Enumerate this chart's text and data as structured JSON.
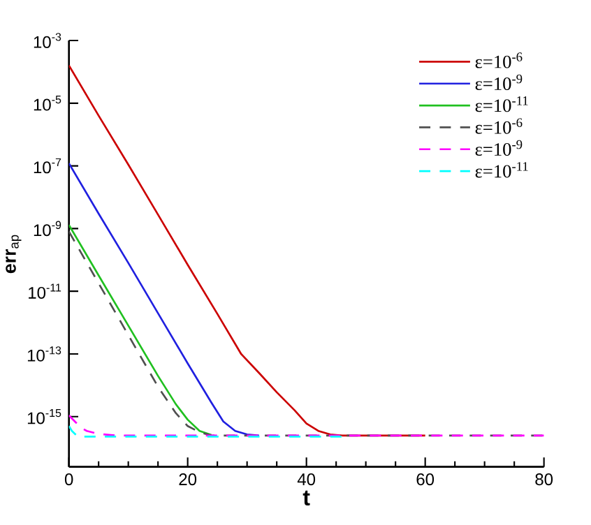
{
  "chart_data": {
    "type": "line",
    "xlabel": "t",
    "ylabel": "**err**$_{ap}$",
    "log": "y",
    "legend": "top right",
    "marker": "none",
    "grid": false,
    "xlim": [
      0,
      80
    ],
    "ylim": [
      2.5e-17,
      0.001
    ],
    "xticks": [
      0,
      20,
      40,
      60,
      80
    ],
    "yticks": [
      {
        "value": 0.001,
        "label": "10$^{-3}$"
      },
      {
        "value": 1e-05,
        "label": "10$^{-5}$"
      },
      {
        "value": 1e-07,
        "label": "10$^{-7}$"
      },
      {
        "value": 1e-09,
        "label": "10$^{-9}$"
      },
      {
        "value": 1e-11,
        "label": "10$^{-11}$"
      },
      {
        "value": 1e-13,
        "label": "10$^{-13}$"
      },
      {
        "value": 1e-15,
        "label": "10$^{-15}$"
      }
    ],
    "series": [
      {
        "name": "ε=10$^{-6}$",
        "color": "#cc0000",
        "line_style": "solid",
        "x": [
          0,
          5,
          10,
          15,
          20,
          25,
          29,
          32,
          35,
          38,
          40,
          42,
          44,
          46,
          60
        ],
        "values": [
          0.00016,
          4e-06,
          1.1e-07,
          2.8e-09,
          7e-11,
          1.9e-12,
          1e-13,
          2.5e-14,
          6e-15,
          1.6e-15,
          6e-16,
          3.5e-16,
          2.7e-16,
          2.5e-16,
          2.5e-16
        ]
      },
      {
        "name": "ε=10$^{-9}$",
        "color": "#2020e0",
        "line_style": "solid",
        "x": [
          0,
          5,
          10,
          15,
          20,
          24,
          26,
          28,
          30,
          32
        ],
        "values": [
          1.2e-07,
          3e-09,
          8e-11,
          2e-12,
          5e-14,
          2.8e-15,
          7e-16,
          3.5e-16,
          2.7e-16,
          2.5e-16
        ]
      },
      {
        "name": "ε=10$^{-11}$",
        "color": "#20c020",
        "line_style": "solid",
        "x": [
          0,
          5,
          10,
          15,
          18,
          20,
          22,
          24
        ],
        "values": [
          1.3e-09,
          3.2e-11,
          8e-13,
          2e-14,
          2.5e-15,
          8e-16,
          3.5e-16,
          2.6e-16
        ]
      },
      {
        "name": "ε=10$^{-6}$",
        "color": "#505050",
        "line_style": "dashed",
        "x": [
          0,
          5,
          10,
          15,
          18,
          20,
          22,
          24,
          80
        ],
        "values": [
          8e-10,
          1.8e-11,
          4e-13,
          9e-15,
          1.3e-15,
          5e-16,
          3.2e-16,
          2.5e-16,
          2.5e-16
        ]
      },
      {
        "name": "ε=10$^{-9}$",
        "color": "#ff00ff",
        "line_style": "dashed",
        "x": [
          0,
          1,
          2,
          3,
          5,
          8,
          80
        ],
        "values": [
          1.1e-15,
          7e-16,
          4.5e-16,
          3.5e-16,
          2.8e-16,
          2.5e-16,
          2.5e-16
        ]
      },
      {
        "name": "ε=10$^{-11}$",
        "color": "#00ffff",
        "line_style": "dashed",
        "x": [
          0,
          0.5,
          1.5,
          46
        ],
        "values": [
          5e-16,
          3.5e-16,
          2.3e-16,
          2.3e-16
        ]
      }
    ]
  }
}
